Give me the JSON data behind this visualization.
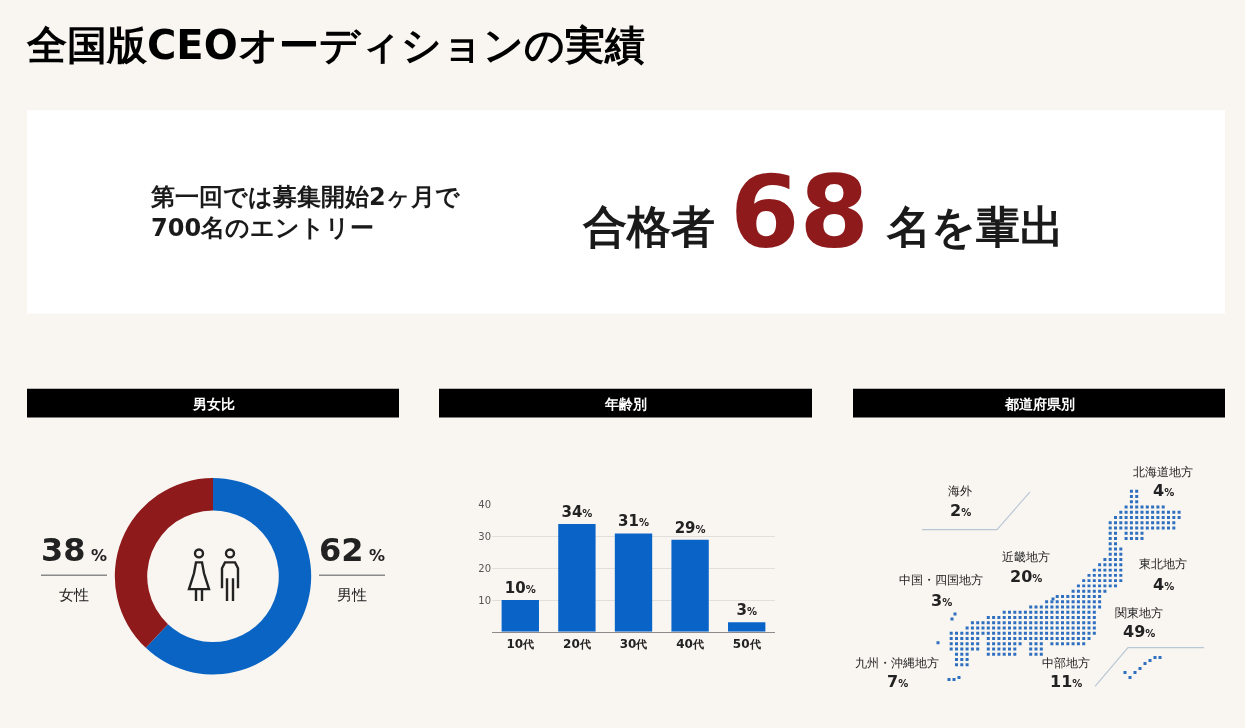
{
  "chart_data": [
    {
      "type": "other",
      "title": "全国版CEOオーディションの実績",
      "annotations": [
        "第一回では募集開始2ヶ月で\n700名のエントリー",
        "合格者",
        "68",
        "名を輩出"
      ]
    },
    {
      "type": "donut",
      "title": "男女比",
      "categories": [
        "男性",
        "女性"
      ],
      "values": [
        62,
        38
      ],
      "colors": [
        "#0a64c4",
        "#8e1a1b"
      ],
      "value_labels": [
        "62 %",
        "38 %"
      ]
    },
    {
      "type": "bar",
      "title": "年齢別",
      "categories": [
        "10代",
        "20代",
        "30代",
        "40代",
        "50代"
      ],
      "values": [
        10,
        34,
        31,
        29,
        3
      ],
      "color": "#0a64c8",
      "value_labels": [
        "10%",
        "34%",
        "31%",
        "29%",
        "3%"
      ],
      "ylim": [
        0,
        40
      ],
      "yticks": [
        10,
        20,
        30,
        40
      ],
      "grid": "y"
    },
    {
      "type": "other",
      "title": "都道府県別",
      "categories": [
        "北海道地方",
        "海外",
        "近畿地方",
        "東北地方",
        "中国・四国地方",
        "関東地方",
        "九州・沖縄地方",
        "中部地方"
      ],
      "values": [
        4,
        2,
        20,
        4,
        3,
        49,
        7,
        11
      ],
      "value_labels": [
        "4%",
        "2%",
        "20%",
        "4%",
        "3%",
        "49%",
        "7%",
        "11%"
      ]
    }
  ]
}
